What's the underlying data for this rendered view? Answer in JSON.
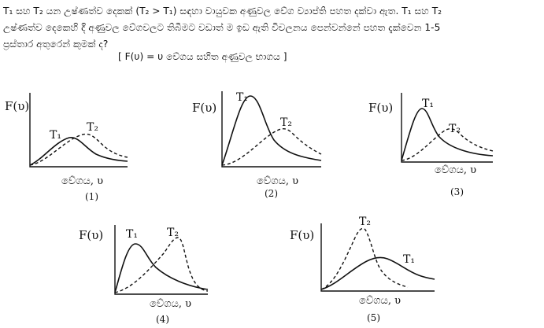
{
  "question": {
    "line1": "T₁ සහ T₂ යන උෂ්ණත්ව දෙකක් (T₂ > T₁) සඳහා වායුවක අණුවල වේග ව්‍යාප්ති පහත දක්වා ඇත. T₁ සහ T₂",
    "line2": "උෂ්ණත්ව දෙකෙහි දී අණුවල වේගවලට තිබීමට වඩාත් ම ඉඩ ඇති විචලනය පෙන්වන්නේ පහත දැක්වෙන 1-5",
    "line3": "ප්‍රස්තාර අතුරෙන් කුමක් ද?",
    "note": "[ F(υ) = υ වේගය සහිත අණුවල භාගය ]"
  },
  "graphs": [
    {
      "caption": "(1)",
      "ylabel": "F(υ)",
      "xlabel": "වේගය,  υ",
      "t1": "T₁",
      "t2": "T₂"
    },
    {
      "caption": "(2)",
      "ylabel": "F(υ)",
      "xlabel": "වේගය,  υ",
      "t1": "T₁",
      "t2": "T₂"
    },
    {
      "caption": "(3)",
      "ylabel": "F(υ)",
      "xlabel": "වේගය,  υ",
      "t1": "T₁",
      "t2": "T₂"
    },
    {
      "caption": "(4)",
      "ylabel": "F(υ)",
      "xlabel": "වේගය,  υ",
      "t1": "T₁",
      "t2": "T₂"
    },
    {
      "caption": "(5)",
      "ylabel": "F(υ)",
      "xlabel": "වේගය,  υ",
      "t1": "T₁",
      "t2": "T₂"
    }
  ]
}
